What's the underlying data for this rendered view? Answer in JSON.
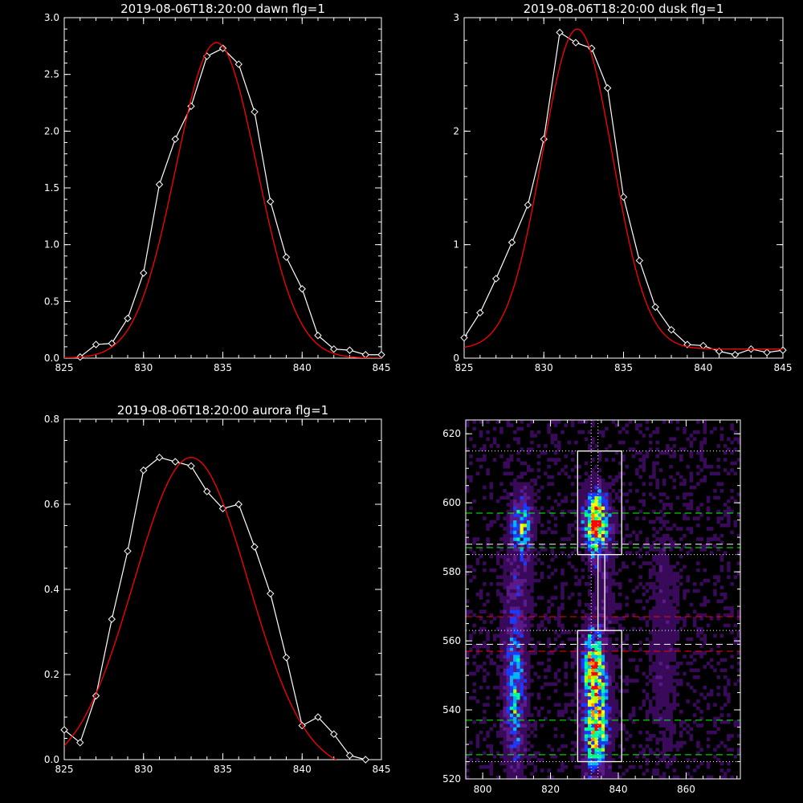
{
  "chart_data": [
    {
      "type": "line",
      "title": "2019-08-06T18:20:00 dawn flg=1",
      "xlim": [
        825,
        845
      ],
      "ylim": [
        0,
        3.0
      ],
      "xticks": [
        "825",
        "830",
        "835",
        "840",
        "845"
      ],
      "yticks": [
        "0.0",
        "0.5",
        "1.0",
        "1.5",
        "2.0",
        "2.5",
        "3.0"
      ],
      "series": [
        {
          "color": "#ffffff",
          "marker": "diamond",
          "x": [
            826,
            827,
            828,
            829,
            830,
            831,
            832,
            833,
            834,
            835,
            836,
            837,
            838,
            839,
            840,
            841,
            842,
            843,
            844,
            845
          ],
          "y": [
            0.01,
            0.12,
            0.13,
            0.35,
            0.75,
            1.53,
            1.93,
            2.22,
            2.66,
            2.73,
            2.59,
            2.17,
            1.38,
            0.89,
            0.61,
            0.2,
            0.08,
            0.07,
            0.03,
            0.03
          ]
        },
        {
          "color": "#ff0000",
          "type": "gaussian",
          "amplitude": 2.78,
          "center": 834.6,
          "sigma": 2.55,
          "offset": 0.0
        }
      ]
    },
    {
      "type": "line",
      "title": "2019-08-06T18:20:00 dusk flg=1",
      "xlim": [
        825,
        845
      ],
      "ylim": [
        0,
        3
      ],
      "xticks": [
        "825",
        "830",
        "835",
        "840",
        "845"
      ],
      "yticks": [
        "0",
        "1",
        "2",
        "3"
      ],
      "series": [
        {
          "color": "#ffffff",
          "marker": "diamond",
          "x": [
            825,
            826,
            827,
            828,
            829,
            830,
            831,
            832,
            833,
            834,
            835,
            836,
            837,
            838,
            839,
            840,
            841,
            842,
            843,
            844,
            845
          ],
          "y": [
            0.18,
            0.4,
            0.7,
            1.02,
            1.35,
            1.93,
            2.87,
            2.78,
            2.73,
            2.38,
            1.42,
            0.86,
            0.45,
            0.25,
            0.12,
            0.11,
            0.06,
            0.03,
            0.08,
            0.05,
            0.07
          ]
        },
        {
          "color": "#ff0000",
          "type": "gaussian",
          "amplitude": 2.82,
          "center": 832.1,
          "sigma": 2.2,
          "offset": 0.08
        }
      ]
    },
    {
      "type": "line",
      "title": "2019-08-06T18:20:00 aurora flg=1",
      "xlim": [
        825,
        845
      ],
      "ylim": [
        0,
        0.8
      ],
      "xticks": [
        "825",
        "830",
        "835",
        "840",
        "845"
      ],
      "yticks": [
        "0.0",
        "0.2",
        "0.4",
        "0.6",
        "0.8"
      ],
      "series": [
        {
          "color": "#ffffff",
          "marker": "diamond",
          "x": [
            825,
            826,
            827,
            828,
            829,
            830,
            831,
            832,
            833,
            834,
            835,
            836,
            837,
            838,
            839,
            840,
            841,
            842,
            843,
            844
          ],
          "y": [
            0.07,
            0.04,
            0.15,
            0.33,
            0.49,
            0.68,
            0.71,
            0.7,
            0.69,
            0.63,
            0.59,
            0.6,
            0.5,
            0.39,
            0.24,
            0.08,
            0.1,
            0.06,
            0.01,
            0.0
          ]
        },
        {
          "color": "#ff0000",
          "type": "gaussian",
          "amplitude": 0.74,
          "center": 833.0,
          "sigma": 3.6,
          "offset": -0.03
        }
      ]
    },
    {
      "type": "heatmap",
      "xlim": [
        795,
        876
      ],
      "ylim": [
        520,
        624
      ],
      "xticks": [
        "800",
        "820",
        "840",
        "860"
      ],
      "yticks": [
        "520",
        "540",
        "560",
        "580",
        "600",
        "620"
      ],
      "colormap": [
        "#000000",
        "#3a0a5a",
        "#5a1a8a",
        "#1a3aff",
        "#00b4ff",
        "#00ff96",
        "#b4ff00",
        "#ffff00",
        "#ff8c00",
        "#ff0000"
      ],
      "hotspots": [
        {
          "x": 811,
          "y": 593,
          "sx": 2.2,
          "sy": 7,
          "amp": 0.45
        },
        {
          "x": 809,
          "y": 545,
          "sx": 2.2,
          "sy": 16,
          "amp": 0.42
        },
        {
          "x": 833,
          "y": 594,
          "sx": 2.5,
          "sy": 6,
          "amp": 0.85
        },
        {
          "x": 833,
          "y": 538,
          "sx": 2.5,
          "sy": 12,
          "amp": 0.75
        },
        {
          "x": 832,
          "y": 555,
          "sx": 2.2,
          "sy": 6,
          "amp": 0.4
        },
        {
          "x": 853,
          "y": 560,
          "sx": 3,
          "sy": 25,
          "amp": 0.12
        },
        {
          "x": 810,
          "y": 575,
          "sx": 3,
          "sy": 10,
          "amp": 0.12
        },
        {
          "x": 835,
          "y": 575,
          "sx": 2,
          "sy": 10,
          "amp": 0.15
        }
      ],
      "boxes": [
        {
          "x0": 828,
          "x1": 841,
          "y0": 585,
          "y1": 615,
          "color": "#ffffff"
        },
        {
          "x0": 828,
          "x1": 841,
          "y0": 525,
          "y1": 563,
          "color": "#ffffff"
        },
        {
          "x0": 834,
          "x1": 836,
          "y0": 563,
          "y1": 585,
          "color": "#ffffff"
        }
      ],
      "hlines": [
        {
          "y": 615,
          "color": "#ffffff",
          "style": "dotted"
        },
        {
          "y": 597,
          "color": "#00ff00",
          "style": "dashed"
        },
        {
          "y": 588,
          "color": "#ffffff",
          "style": "dashed"
        },
        {
          "y": 587,
          "color": "#00ff00",
          "style": "dashed"
        },
        {
          "y": 585,
          "color": "#ffffff",
          "style": "dotted"
        },
        {
          "y": 567,
          "color": "#ff0000",
          "style": "dashed"
        },
        {
          "y": 563,
          "color": "#ffffff",
          "style": "dotted"
        },
        {
          "y": 559,
          "color": "#ffffff",
          "style": "dashed"
        },
        {
          "y": 557,
          "color": "#ff0000",
          "style": "dashed"
        },
        {
          "y": 537,
          "color": "#00ff00",
          "style": "dashed"
        },
        {
          "y": 527,
          "color": "#00ff00",
          "style": "dashed"
        },
        {
          "y": 525,
          "color": "#ffffff",
          "style": "dotted"
        }
      ],
      "vlines": [
        {
          "x": 832,
          "color": "#ffffff",
          "style": "dotted"
        },
        {
          "x": 834,
          "color": "#ffffff",
          "style": "dotted"
        }
      ]
    }
  ]
}
